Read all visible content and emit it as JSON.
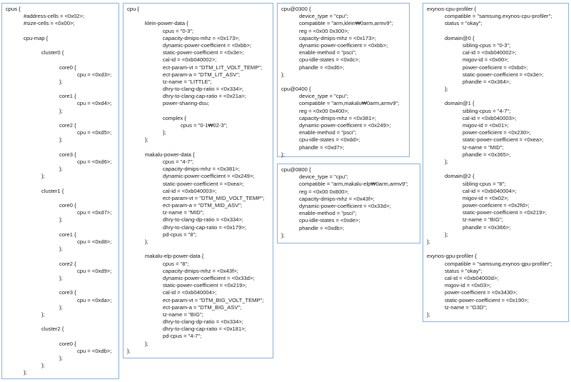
{
  "boxes": [
    {
      "lines": [
        "cpus {",
        "\t#address-cells = <0x02>;",
        "\t#size-cells = <0x00>;",
        "",
        "\tcpu-map {",
        "",
        "\t\tcluster0 {",
        "",
        "\t\t\tcore0 {",
        "\t\t\t\tcpu = <0xd3>;",
        "\t\t\t};",
        "",
        "\t\t\tcore1 {",
        "\t\t\t\tcpu = <0xd4>;",
        "\t\t\t};",
        "",
        "\t\t\tcore2 {",
        "\t\t\t\tcpu = <0xd5>;",
        "\t\t\t};",
        "",
        "\t\t\tcore3 {",
        "\t\t\t\tcpu = <0xd6>;",
        "\t\t\t};",
        "\t\t};",
        "",
        "\t\tcluster1 {",
        "",
        "\t\t\tcore0 {",
        "\t\t\t\tcpu = <0xd7>;",
        "\t\t\t};",
        "",
        "\t\t\tcore1 {",
        "\t\t\t\tcpu = <0xd8>;",
        "\t\t\t};",
        "",
        "\t\t\tcore2 {",
        "\t\t\t\tcpu = <0xd9>;",
        "\t\t\t};",
        "",
        "\t\t\tcore3 {",
        "\t\t\t\tcpu = <0xda>;",
        "\t\t\t};",
        "\t\t};",
        "",
        "\t\tcluster2 {",
        "",
        "\t\t\tcore0 {",
        "\t\t\t\tcpu = <0xdb>;",
        "\t\t\t};",
        "\t\t};",
        "\t};"
      ]
    },
    {
      "lines": [
        "cpu {",
        "",
        "\tklein-power-data {",
        "\t\tcpus = \"0-3\";",
        "\t\tcapacity-dmips-mhz = <0x173>;",
        "\t\tdynamic-power-coefficient = <0xbb>;",
        "\t\tstatic-power-coefficient = <0x3e>;",
        "\t\tcal-id = <0xb040002>;",
        "\t\tect-param-vt = \"DTM_LIT_VOLT_TEMP\";",
        "\t\tect-param-a = \"DTM_LIT_ASV\";",
        "\t\ttz-name = \"LITTLE\";",
        "\t\tdhry-to-clang-dp-ratio = <0x334>;",
        "\t\tdhry-to-clang-cap-ratio = <0x21a>;",
        "\t\tpower-sharing-dsu;",
        "",
        "\t\tcomplex {",
        "\t\t\tcpus = \"0-1₩02-3\";",
        "\t\t};",
        "\t};",
        "",
        "\tmakalu-power-data {",
        "\t\tcpus = \"4-7\";",
        "\t\tcapacity-dmips-mhz = <0x381>;",
        "\t\tdynamic-power-coefficient = <0x249>;",
        "\t\tstatic-power-coefficient = <0xea>;",
        "\t\tcal-id = <0xb040003>;",
        "\t\tect-param-vt = \"DTM_MID_VOLT_TEMP\";",
        "\t\tect-param-a = \"DTM_MID_ASV\";",
        "\t\ttz-name = \"MID\";",
        "\t\tdhry-to-clang-dp-ratio = <0x334>;",
        "\t\tdhry-to-clang-cap-ratio = <0x179>;",
        "\t\tpd-cpus = \"8\";",
        "\t};",
        "",
        "\tmakalu-elp-power-data {",
        "\t\tcpus = \"8\";",
        "\t\tcapacity-dmips-mhz = <0x43f>;",
        "\t\tdynamic-power-coefficient = <0x33d>;",
        "\t\tstatic-power-coefficient = <0x219>;",
        "\t\tcal-id = <0xb040004>;",
        "\t\tect-param-vt = \"DTM_BIG_VOLT_TEMP\";",
        "\t\tect-param-a = \"DTM_BIG_ASV\";",
        "\t\ttz-name = \"BIG\";",
        "\t\tdhry-to-clang-dp-ratio = <0x334>;",
        "\t\tdhry-to-clang-cap-ratio = <0x181>;",
        "\t\tpd-cpus = \"4-7\";",
        "\t};",
        "};"
      ]
    },
    {
      "lines": [
        "cpu@0300 {",
        "\tdevice_type = \"cpu\";",
        "\tcompatible = \"arm,klein₩0arm,armv9\";",
        "\treg = <0x00 0x300>;",
        "\tcapacity-dmips-mhz = <0x173>;",
        "\tdynamic-power-coefficient = <0xbb>;",
        "\tenable-method = \"psci\";",
        "\tcpu-idle-states = <0xdc>;",
        "\tphandle = <0xd6>;",
        "};",
        "",
        "cpu@0400 {",
        "\tdevice_type = \"cpu\";",
        "\tcompatible = \"arm,makalu₩0arm,armv9\";",
        "\treg = <0x00 0x400>;",
        "\tcapacity-dmips-mhz = <0x381>;",
        "\tdynamic-power-coefficient = <0x249>;",
        "\tenable-method = \"psci\";",
        "\tcpu-idle-states = <0xdd>;",
        "\tphandle = <0xd7>;",
        "};"
      ]
    },
    {
      "lines": [
        "cpu@0800 {",
        "\tdevice_type = \"cpu\";",
        "\tcompatible = \"arm,makalu-elp₩0arm,armv9\";",
        "\treg = <0x00 0x800>;",
        "\tcapacity-dmips-mhz = <0x43f>;",
        "\tdynamic-power-coefficient = <0x33d>;",
        "\tenable-method = \"psci\";",
        "\tcpu-idle-states = <0xde>;",
        "\tphandle = <0xdb>;",
        "};"
      ]
    },
    {
      "lines": [
        "exynos-cpu-profiler {",
        "\tcompatible = \"samsung,exynos-cpu-profiler\";",
        "\tstatus = \"okay\";",
        "",
        "\tdomain@0 {",
        "\t\tsibling-cpus = \"0-3\";",
        "\t\tcal-id = <0xb040002>;",
        "\t\tmigov-id = <0x00>;",
        "\t\tpower-coeficient = <0xbd>;",
        "\t\tstatic-power-coefficient = <0x3e>;",
        "\t\tphandle = <0x364>;",
        "\t};",
        "",
        "\tdomain@1 {",
        "\t\tsibling-cpus = \"4-7\";",
        "\t\tcal-id = <0xb040003>;",
        "\t\tmigov-id = <0x01>;",
        "\t\tpower-coeficient = <0x230>;",
        "\t\tstatic-power-coefficient = <0xea>;",
        "\t\ttz-name = \"MID\";",
        "\t\tphandle = <0x365>;",
        "\t};",
        "",
        "\tdomain@2 {",
        "\t\tsibling-cpus = \"8\";",
        "\t\tcal-id = <0xb040004>;",
        "\t\tmigov-id = <0x02>;",
        "\t\tpower-coeficient = <0x2fd>;",
        "\t\tstatic-power-coefficient = <0x219>;",
        "\t\ttz-name = \"BIG\";",
        "\t\tphandle = <0x366>;",
        "\t};",
        "};",
        "",
        "exynos-gpu-profiler {",
        "\tcompatible = \"samsung,exynos-gpu-profiler\";",
        "\tstatus = \"okay\";",
        "\tcal-id = <0xb04000d>;",
        "\tmigov-id = <0x03>;",
        "\tpower-coefficient = <0x3430>;",
        "\tstatic-power-coefficient = <0x190>;",
        "\ttz-name = \"G3D\";",
        "};"
      ]
    }
  ]
}
